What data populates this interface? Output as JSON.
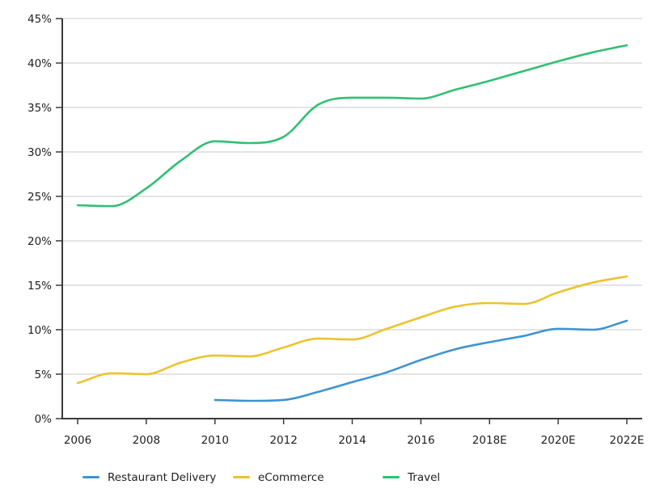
{
  "chart_data": {
    "type": "line",
    "x": [
      2006,
      2007,
      2008,
      2009,
      2010,
      2011,
      2012,
      2013,
      2014,
      2015,
      2016,
      2017,
      2018,
      2019,
      2020,
      2021,
      2022
    ],
    "x_tick_labels": [
      "2006",
      "2008",
      "2010",
      "2012",
      "2014",
      "2016",
      "2018E",
      "2020E",
      "2022E"
    ],
    "x_tick_years": [
      2006,
      2008,
      2010,
      2012,
      2014,
      2016,
      2018,
      2020,
      2022
    ],
    "y_tick_labels": [
      "0%",
      "5%",
      "10%",
      "15%",
      "20%",
      "25%",
      "30%",
      "35%",
      "40%",
      "45%"
    ],
    "y_tick_values": [
      0,
      5,
      10,
      15,
      20,
      25,
      30,
      35,
      40,
      45
    ],
    "ylim": [
      0,
      45
    ],
    "xlabel": "",
    "ylabel": "",
    "grid": "horizontal",
    "legend_position": "bottom",
    "series": [
      {
        "name": "Restaurant Delivery",
        "color": "#3e94d2",
        "values": [
          null,
          null,
          null,
          null,
          2.1,
          2.0,
          2.1,
          3.0,
          4.1,
          5.2,
          6.6,
          7.8,
          8.6,
          9.3,
          10.1,
          10.0,
          11.0
        ]
      },
      {
        "name": "eCommerce",
        "color": "#ecc32d",
        "values": [
          4.0,
          5.1,
          5.0,
          6.3,
          7.1,
          7.0,
          8.0,
          9.0,
          8.9,
          10.1,
          11.4,
          12.6,
          13.0,
          12.9,
          14.2,
          15.3,
          16.0
        ]
      },
      {
        "name": "Travel",
        "color": "#31bf72",
        "values": [
          24.0,
          23.9,
          25.9,
          29.0,
          31.2,
          31.0,
          31.7,
          35.3,
          36.1,
          36.1,
          36.0,
          37.0,
          38.0,
          39.1,
          40.2,
          41.2,
          42.0
        ]
      }
    ],
    "colors": {
      "axis": "#3a3a3a",
      "grid": "#c9c9c9",
      "labels": "#1f1f1f",
      "background": "#ffffff"
    }
  }
}
